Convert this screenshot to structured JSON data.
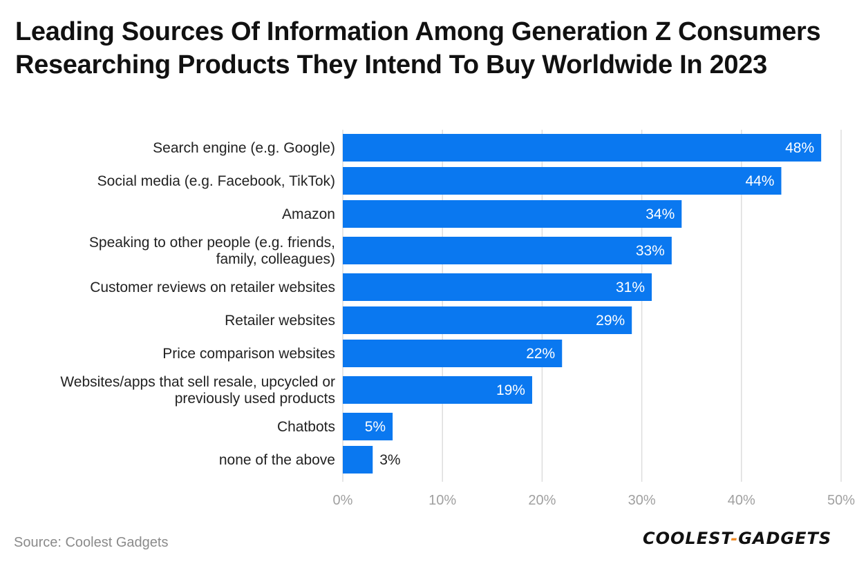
{
  "title": "Leading Sources Of Information Among Generation Z Consumers Researching Products They Intend To Buy Worldwide In 2023",
  "source": "Source: Coolest Gadgets",
  "logo": {
    "part1": "COOLEST",
    "separator": "-",
    "part2": "GADGETS"
  },
  "colors": {
    "bar": "#0a78f0",
    "grid": "#dddddd",
    "tick": "#a0a0a0",
    "label": "#222222"
  },
  "chart_data": {
    "type": "bar",
    "orientation": "horizontal",
    "title": "Leading Sources Of Information Among Generation Z Consumers Researching Products They Intend To Buy Worldwide In 2023",
    "xlabel": "",
    "ylabel": "",
    "xlim": [
      0,
      50
    ],
    "grid": true,
    "categories": [
      [
        "Search engine (e.g. Google)"
      ],
      [
        "Social media (e.g. Facebook, TikTok)"
      ],
      [
        "Amazon"
      ],
      [
        "Speaking to other people (e.g. friends,",
        "family, colleagues)"
      ],
      [
        "Customer reviews on retailer websites"
      ],
      [
        "Retailer websites"
      ],
      [
        "Price comparison websites"
      ],
      [
        "Websites/apps that sell resale, upcycled or",
        "previously used products"
      ],
      [
        "Chatbots"
      ],
      [
        "none of the above"
      ]
    ],
    "values": [
      48,
      44,
      34,
      33,
      31,
      29,
      22,
      19,
      5,
      3
    ],
    "data_labels": [
      "48%",
      "44%",
      "34%",
      "33%",
      "31%",
      "29%",
      "22%",
      "19%",
      "5%",
      "3%"
    ],
    "ticks": [
      0,
      10,
      20,
      30,
      40,
      50
    ],
    "tick_labels": [
      "0%",
      "10%",
      "20%",
      "30%",
      "40%",
      "50%"
    ]
  }
}
